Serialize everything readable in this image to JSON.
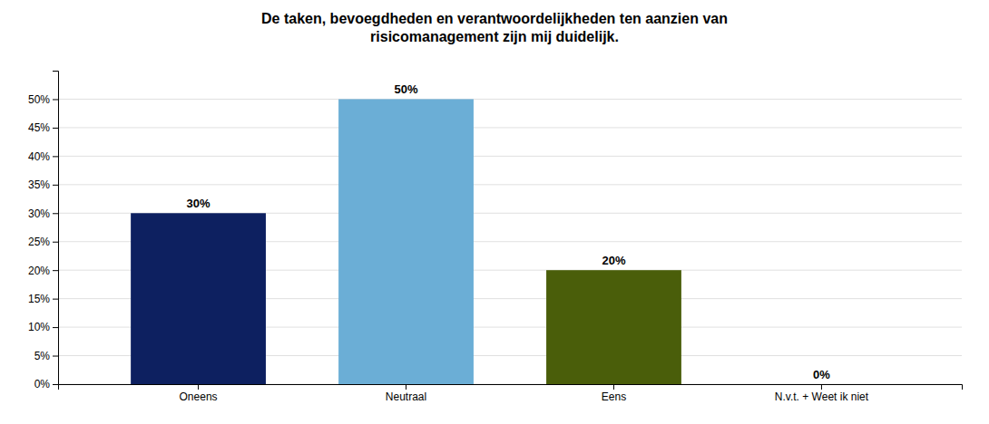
{
  "chart_data": {
    "type": "bar",
    "title": "De taken, bevoegdheden en verantwoordelijkheden ten aanzien van\nrisicomanagement zijn mij duidelijk.",
    "categories": [
      "Oneens",
      "Neutraal",
      "Eens",
      "N.v.t. + Weet ik niet"
    ],
    "values": [
      0.3,
      0.5,
      0.2,
      0.0
    ],
    "value_labels": [
      "30%",
      "50%",
      "20%",
      "0%"
    ],
    "colors": [
      "#0D2060",
      "#6BAED6",
      "#4A5E0A",
      "#7CBF5A"
    ],
    "ylim": [
      0,
      0.55
    ],
    "yticks": [
      {
        "value": 0.0,
        "label": "0%"
      },
      {
        "value": 0.05,
        "label": "5%"
      },
      {
        "value": 0.1,
        "label": "10%"
      },
      {
        "value": 0.15,
        "label": "15%"
      },
      {
        "value": 0.2,
        "label": "20%"
      },
      {
        "value": 0.25,
        "label": "25%"
      },
      {
        "value": 0.3,
        "label": "30%"
      },
      {
        "value": 0.35,
        "label": "35%"
      },
      {
        "value": 0.4,
        "label": "40%"
      },
      {
        "value": 0.45,
        "label": "45%"
      },
      {
        "value": 0.5,
        "label": "50%"
      }
    ],
    "grid": true,
    "data_labels": true
  }
}
